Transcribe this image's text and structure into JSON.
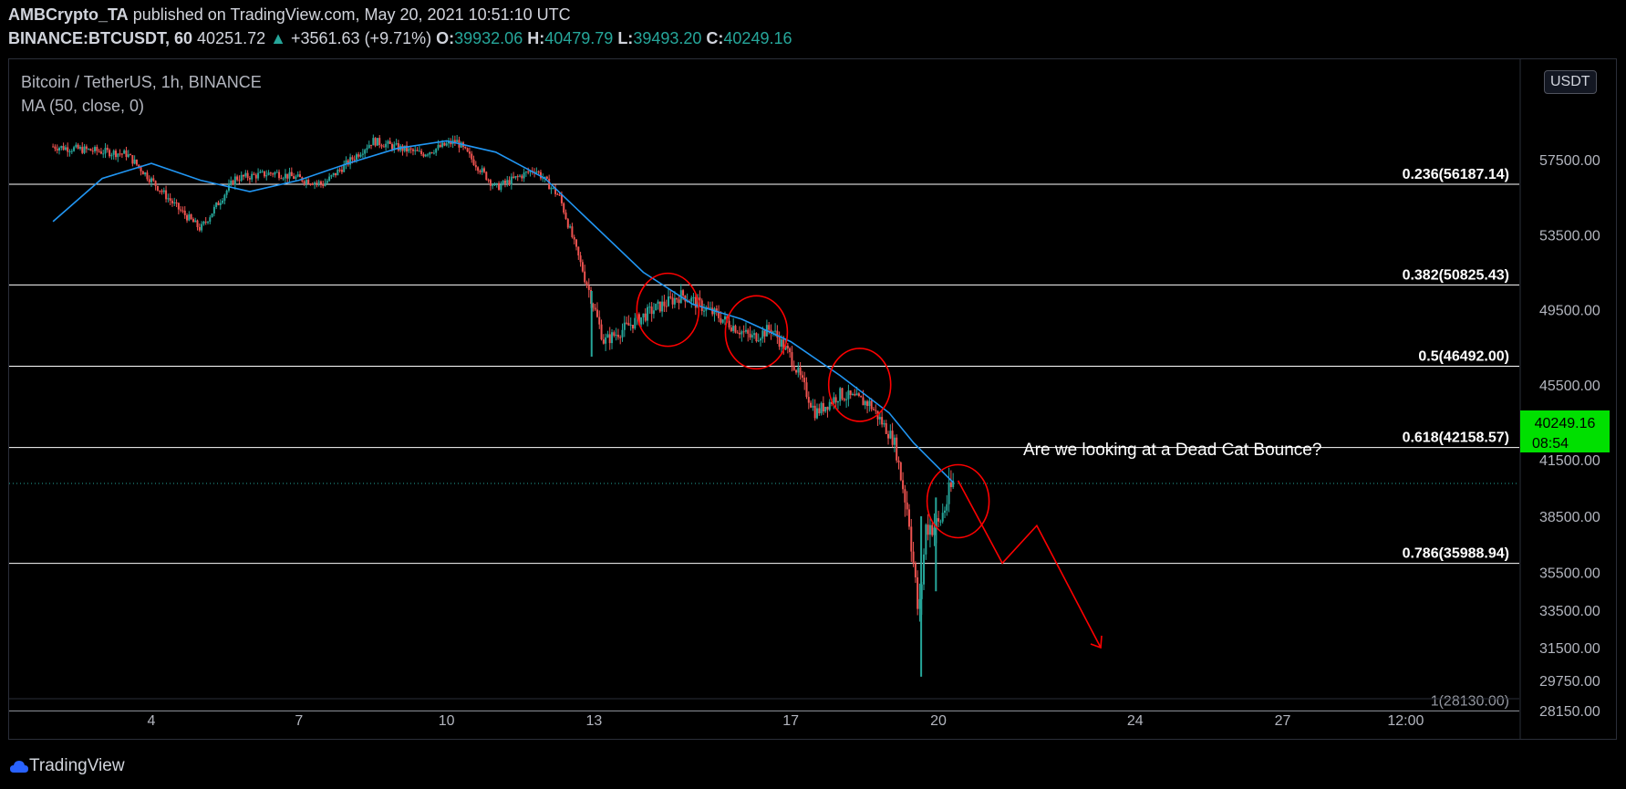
{
  "header": {
    "author": "AMBCrypto_TA",
    "published": "published on TradingView.com, May 20, 2021 10:51:10 UTC",
    "symbol": "BINANCE:BTCUSDT, 60",
    "last": "40251.72",
    "change": "+3561.63 (+9.71%)",
    "o_label": "O:",
    "o": "39932.06",
    "h_label": "H:",
    "h": "40479.79",
    "l_label": "L:",
    "l": "39493.20",
    "c_label": "C:",
    "c": "40249.16"
  },
  "legend": {
    "title": "Bitcoin / TetherUS, 1h, BINANCE",
    "ma": "MA (50, close, 0)"
  },
  "price_axis": {
    "unit": "USDT",
    "current_price": "40249.16",
    "countdown": "08:54"
  },
  "annotation": "Are we looking at a Dead Cat Bounce?",
  "footer": {
    "brand": "TradingView"
  },
  "colors": {
    "up": "#26a69a",
    "down": "#ef5350",
    "ma": "#2196f3",
    "fib": "#ffffff",
    "drawing": "#ff0000",
    "price_tag": "#00e000"
  },
  "chart_data": {
    "type": "candlestick",
    "x_ticks": [
      "4",
      "7",
      "10",
      "13",
      "17",
      "20",
      "24",
      "27",
      "12:00"
    ],
    "y_ticks": [
      57500,
      53500,
      49500,
      45500,
      41500,
      38500,
      35500,
      33500,
      31500,
      29750,
      28150
    ],
    "y_tick_labels": [
      "57500.00",
      "53500.00",
      "49500.00",
      "45500.00",
      "41500.00",
      "38500.00",
      "35500.00",
      "33500.00",
      "31500.00",
      "29750.00",
      "28150.00"
    ],
    "fib_levels": [
      {
        "label": "0.236(56187.14)",
        "value": 56187.14
      },
      {
        "label": "0.382(50825.43)",
        "value": 50825.43
      },
      {
        "label": "0.5(46492.00)",
        "value": 46492.0
      },
      {
        "label": "0.618(42158.57)",
        "value": 42158.57
      },
      {
        "label": "0.786(35988.94)",
        "value": 35988.94
      },
      {
        "label": "1(28130.00)",
        "value": 28130.0
      }
    ],
    "price_path": [
      [
        2.0,
        58200
      ],
      [
        3.5,
        57800
      ],
      [
        4.5,
        55000
      ],
      [
        5.0,
        53800
      ],
      [
        5.7,
        56500
      ],
      [
        6.5,
        56800
      ],
      [
        7.5,
        56200
      ],
      [
        8.5,
        58500
      ],
      [
        9.5,
        57800
      ],
      [
        10.2,
        58500
      ],
      [
        11.0,
        56000
      ],
      [
        11.8,
        57000
      ],
      [
        12.3,
        55500
      ],
      [
        12.9,
        50500
      ],
      [
        13.2,
        47800
      ],
      [
        14.2,
        49500
      ],
      [
        14.8,
        50300
      ],
      [
        15.5,
        49200
      ],
      [
        16.2,
        48000
      ],
      [
        16.6,
        48500
      ],
      [
        17.0,
        47000
      ],
      [
        17.5,
        44000
      ],
      [
        18.0,
        45000
      ],
      [
        18.6,
        44500
      ],
      [
        19.1,
        42500
      ],
      [
        19.4,
        38500
      ],
      [
        19.6,
        33000
      ],
      [
        19.75,
        38000
      ],
      [
        20.0,
        38000
      ],
      [
        20.3,
        40250
      ]
    ],
    "ma_path": [
      [
        2.0,
        54200
      ],
      [
        3.0,
        56500
      ],
      [
        4.0,
        57300
      ],
      [
        5.0,
        56400
      ],
      [
        6.0,
        55800
      ],
      [
        7.0,
        56400
      ],
      [
        8.0,
        57300
      ],
      [
        9.0,
        58100
      ],
      [
        10.0,
        58500
      ],
      [
        11.0,
        57900
      ],
      [
        12.0,
        56500
      ],
      [
        13.0,
        54000
      ],
      [
        14.0,
        51500
      ],
      [
        15.0,
        49800
      ],
      [
        16.0,
        49000
      ],
      [
        17.0,
        47800
      ],
      [
        18.0,
        46000
      ],
      [
        19.0,
        44000
      ],
      [
        19.5,
        42400
      ],
      [
        20.3,
        40300
      ]
    ],
    "wicks": [
      {
        "x": 12.95,
        "low": 47000,
        "high": 50500
      },
      {
        "x": 19.65,
        "low": 29950,
        "high": 38500
      },
      {
        "x": 19.95,
        "low": 34500,
        "high": 39500
      }
    ],
    "circles": [
      {
        "x": 14.5,
        "y": 49500
      },
      {
        "x": 16.3,
        "y": 48300
      },
      {
        "x": 18.4,
        "y": 45500
      },
      {
        "x": 20.4,
        "y": 39300
      }
    ],
    "projection": [
      [
        20.4,
        40400
      ],
      [
        21.3,
        36000
      ],
      [
        22.0,
        38000
      ],
      [
        23.3,
        31500
      ]
    ]
  }
}
